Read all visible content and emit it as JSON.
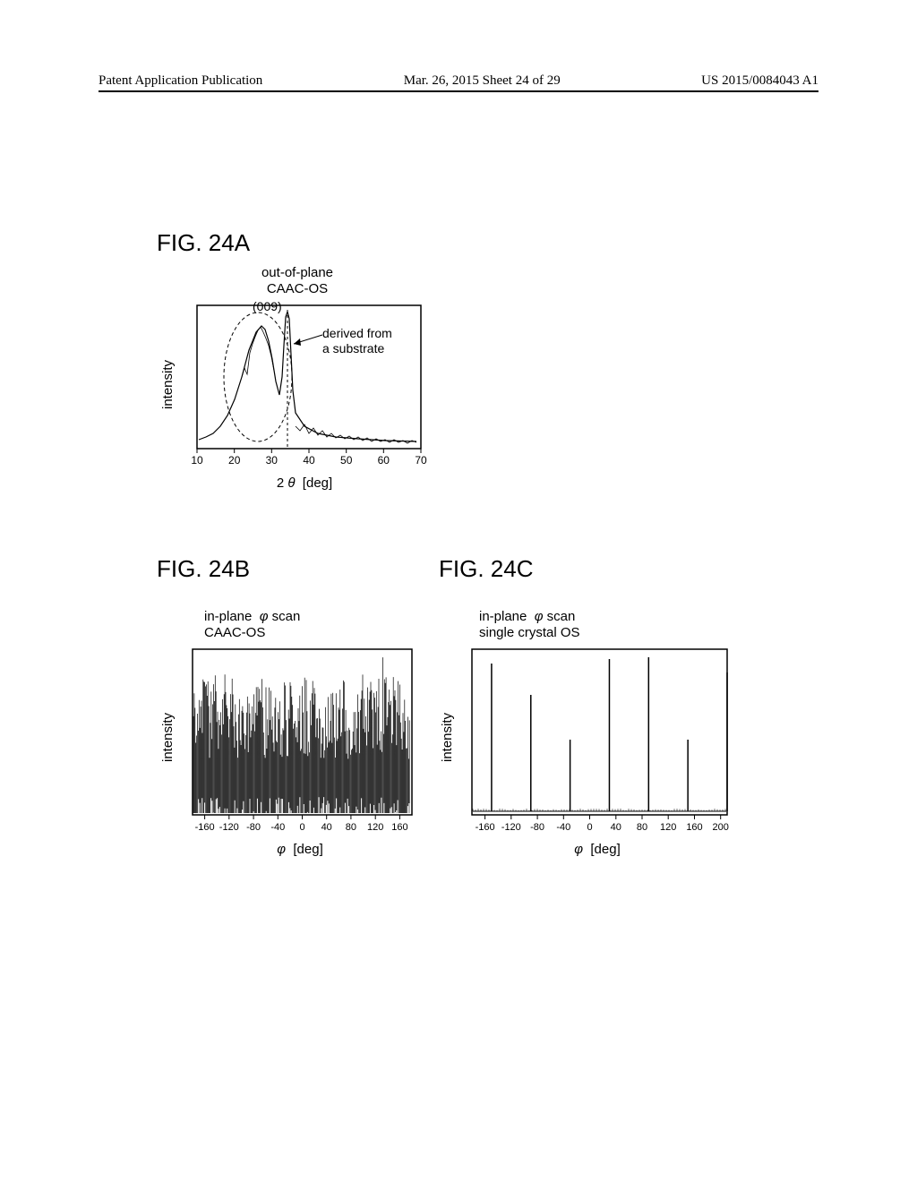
{
  "header": {
    "left": "Patent Application Publication",
    "center": "Mar. 26, 2015  Sheet 24 of 29",
    "right": "US 2015/0084043 A1"
  },
  "figA": {
    "label": "FIG. 24A",
    "title_line1": "out-of-plane",
    "title_line2": "CAAC-OS",
    "ylabel": "intensity",
    "xlabel": "2 θ  [deg]",
    "peak_label": "(009)",
    "annotation_line1": "derived from",
    "annotation_line2": "a substrate",
    "xticks": [
      "10",
      "20",
      "30",
      "40",
      "50",
      "60",
      "70"
    ],
    "xlim": [
      10,
      70
    ],
    "plot": {
      "background_color": "#ffffff",
      "line_color": "#000000",
      "border_color": "#000000"
    }
  },
  "figB": {
    "label": "FIG. 24B",
    "title_line1": "in-plane  φ scan",
    "title_line2": "CAAC-OS",
    "ylabel": "intensity",
    "xlabel": "φ  [deg]",
    "xticks": [
      "-160",
      "-120",
      "-80",
      "-40",
      "0",
      "40",
      "80",
      "120",
      "160"
    ],
    "xlim": [
      -180,
      180
    ],
    "plot": {
      "background_color": "#ffffff",
      "line_color": "#000000",
      "border_color": "#000000"
    }
  },
  "figC": {
    "label": "FIG. 24C",
    "title_line1": "in-plane  φ scan",
    "title_line2": "single crystal OS",
    "ylabel": "intensity",
    "xlabel": "φ  [deg]",
    "xticks": [
      "-160",
      "-120",
      "-80",
      "-40",
      "0",
      "40",
      "80",
      "120",
      "160",
      "200"
    ],
    "xlim": [
      -180,
      210
    ],
    "peaks": [
      -150,
      -90,
      -30,
      30,
      90,
      150,
      210
    ],
    "plot": {
      "background_color": "#ffffff",
      "line_color": "#000000",
      "border_color": "#000000"
    }
  }
}
